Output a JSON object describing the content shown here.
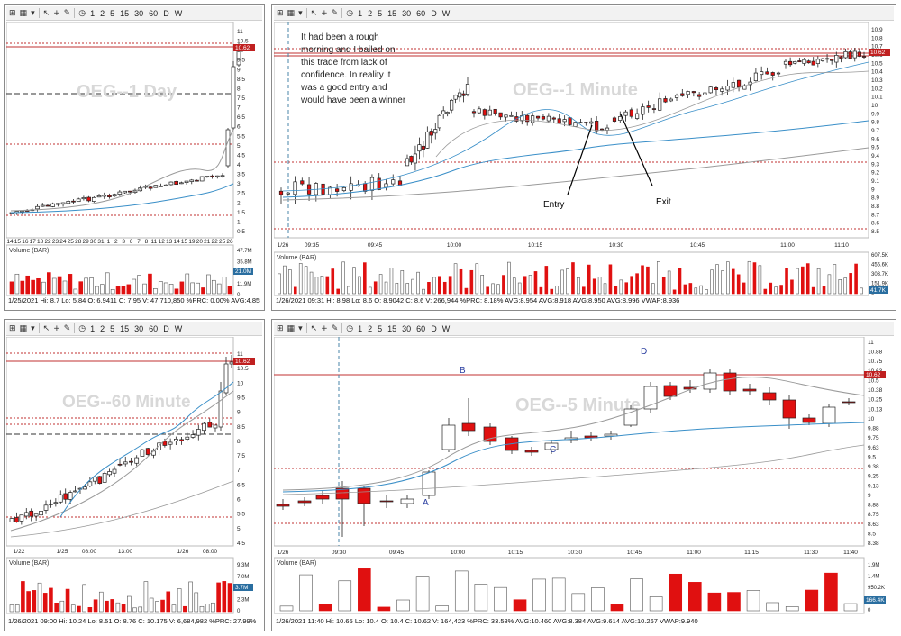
{
  "toolbar": {
    "items": [
      "1",
      "2",
      "5",
      "15",
      "30",
      "60",
      "D",
      "W"
    ]
  },
  "panels": {
    "tl": {
      "watermark": "OEG--1 Day",
      "price_ticks": [
        "11",
        "10.5",
        "10",
        "9.5",
        "9",
        "8.5",
        "8",
        "7.5",
        "7",
        "6.5",
        "6",
        "5.5",
        "5",
        "4.5",
        "4",
        "3.5",
        "3",
        "2.5",
        "2",
        "1.5",
        "1",
        "0.5"
      ],
      "price_tag": "10.62",
      "date_ticks": [
        "14",
        "15",
        "16",
        "17",
        "18",
        "22",
        "23",
        "24",
        "25",
        "28",
        "29",
        "30",
        "31",
        "1",
        "2",
        "3",
        "6",
        "7",
        "8",
        "11",
        "12",
        "13",
        "14",
        "15",
        "19",
        "20",
        "21",
        "22",
        "25",
        "26"
      ],
      "volume_label": "Volume (BAR)",
      "volume_ticks": [
        "47.7M",
        "35.8M",
        "23.9M",
        "11.9M",
        "0"
      ],
      "volume_tag": "21.0M",
      "status": "1/25/2021   Hi: 8.7   Lo: 5.84   O: 6.9411   C: 7.95   V: 47,710,850   %PRC: 0.00%   AVG:4.858   AVG:1.0"
    },
    "tr": {
      "watermark": "OEG--1 Minute",
      "annotation_lines": [
        "It had been a rough",
        "morning and I bailed on",
        "this trade from lack of",
        "confidence. In reality it",
        "was a good entry and",
        "would have been a winner"
      ],
      "entry_label": "Entry",
      "exit_label": "Exit",
      "price_ticks": [
        "10.9",
        "10.8",
        "10.7",
        "10.6",
        "10.5",
        "10.4",
        "10.3",
        "10.2",
        "10.1",
        "10",
        "9.9",
        "9.8",
        "9.7",
        "9.6",
        "9.5",
        "9.4",
        "9.3",
        "9.2",
        "9.1",
        "9",
        "8.9",
        "8.8",
        "8.7",
        "8.6",
        "8.5"
      ],
      "price_tag": "10.62",
      "date_start": "1/26",
      "time_ticks": [
        "09:35",
        "09:45",
        "10:00",
        "10:15",
        "10:30",
        "10:45",
        "11:00",
        "11:10"
      ],
      "volume_label": "Volume (BAR)",
      "volume_ticks": [
        "607.5K",
        "455.6K",
        "303.7K",
        "151.9K",
        "0"
      ],
      "volume_tag": "41.7K",
      "status": "1/26/2021 09:31   Hi: 8.98   Lo: 8.6   O: 8.9042   C: 8.6   V: 266,944   %PRC: 8.18%   AVG:8.954   AVG:8.918   AVG:8.950   AVG:8.996   VWAP:8.936"
    },
    "bl": {
      "watermark": "OEG--60 Minute",
      "price_ticks": [
        "11",
        "10.5",
        "10",
        "9.5",
        "9",
        "8.5",
        "8",
        "7.5",
        "7",
        "6.5",
        "6",
        "5.5",
        "5",
        "4.5"
      ],
      "price_tag": "10.62",
      "date_ticks": [
        "1/22",
        "1/25",
        "08:00",
        "13:00",
        "1/26",
        "08:00"
      ],
      "volume_label": "Volume (BAR)",
      "volume_ticks": [
        "9.3M",
        "7.0M",
        "4.7M",
        "2.3M",
        "0"
      ],
      "volume_tag": "3.7M",
      "status": "1/26/2021 09:00   Hi: 10.24   Lo: 8.51   O: 8.76   C: 10.175   V: 6,684,982   %PRC: 27.99%"
    },
    "br": {
      "watermark": "OEG--5 Minute",
      "point_labels": [
        "A",
        "B",
        "C",
        "D"
      ],
      "price_ticks": [
        "11",
        "10.88",
        "10.75",
        "10.63",
        "10.5",
        "10.38",
        "10.25",
        "10.13",
        "10",
        "9.88",
        "9.75",
        "9.63",
        "9.5",
        "9.38",
        "9.25",
        "9.13",
        "9",
        "8.88",
        "8.75",
        "8.63",
        "8.5",
        "8.38"
      ],
      "price_tag": "10.62",
      "date_start": "1/26",
      "time_ticks": [
        "09:30",
        "09:45",
        "10:00",
        "10:15",
        "10:30",
        "10:45",
        "11:00",
        "11:15",
        "11:30",
        "11:40"
      ],
      "volume_label": "Volume (BAR)",
      "volume_ticks": [
        "1.9M",
        "1.4M",
        "950.2K",
        "475.1K",
        "0"
      ],
      "volume_tag": "166.4K",
      "status": "1/26/2021 11:40   Hi: 10.65   Lo: 10.4   O: 10.4   C: 10.62   V: 164,423   %PRC: 33.58%   AVG:10.460   AVG:8.384   AVG:9.614   AVG:10.267   VWAP:9.940"
    }
  },
  "colors": {
    "up": "#ffffff",
    "down": "#e01010",
    "ma_blue": "#3a8fc8",
    "ma_gray": "#9a9a9a",
    "level_red": "#c03030",
    "cursor": "#4a86a8"
  }
}
